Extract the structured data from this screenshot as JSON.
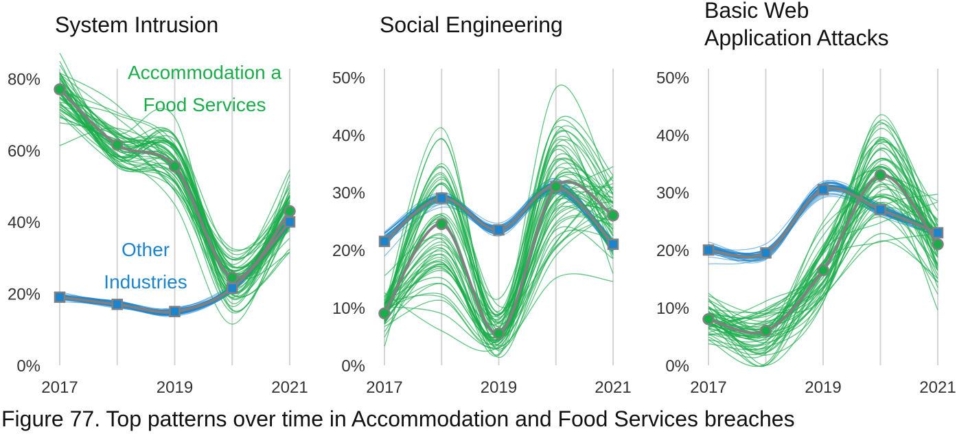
{
  "caption": "Figure 77. Top patterns over time in Accommodation and Food Services breaches",
  "colors": {
    "industry": "#1aad4a",
    "other": "#1c84cc",
    "median_line": "#808080",
    "grid": "#d4d4d4"
  },
  "chart_data": [
    {
      "type": "line",
      "title": "System Intrusion",
      "x": [
        2017,
        2018,
        2019,
        2020,
        2021
      ],
      "x_tick_labels": [
        "2017",
        "2019",
        "2021"
      ],
      "y_tick_labels": [
        "0%",
        "20%",
        "40%",
        "60%",
        "80%"
      ],
      "ylim": [
        0,
        82
      ],
      "series": [
        {
          "name": "Accommodation a Food Services",
          "color": "#1aad4a",
          "marker": "circle",
          "values": [
            77,
            61.5,
            55.5,
            24.5,
            43
          ],
          "band_spread": [
            9,
            8,
            10,
            9,
            10
          ]
        },
        {
          "name": "Other Industries",
          "color": "#1c84cc",
          "marker": "square",
          "values": [
            19,
            17,
            15,
            21.5,
            40
          ],
          "band_spread": [
            1.2,
            1,
            1,
            1.2,
            1.5
          ]
        }
      ]
    },
    {
      "type": "line",
      "title": "Social Engineering",
      "x": [
        2017,
        2018,
        2019,
        2020,
        2021
      ],
      "x_tick_labels": [
        "2017",
        "2019",
        "2021"
      ],
      "y_tick_labels": [
        "0%",
        "10%",
        "20%",
        "30%",
        "40%",
        "50%"
      ],
      "ylim": [
        0,
        51
      ],
      "series": [
        {
          "name": "",
          "color": "#1aad4a",
          "marker": "circle",
          "values": [
            9,
            24.5,
            5.5,
            31,
            26
          ],
          "band_spread": [
            4,
            14,
            5,
            14,
            9
          ]
        },
        {
          "name": "",
          "color": "#1c84cc",
          "marker": "square",
          "values": [
            21.5,
            29,
            23.5,
            31,
            21
          ],
          "band_spread": [
            1.5,
            1.2,
            1,
            1.2,
            1.2
          ]
        }
      ]
    },
    {
      "type": "line",
      "title": "Basic Web\nApplication Attacks",
      "x": [
        2017,
        2018,
        2019,
        2020,
        2021
      ],
      "x_tick_labels": [
        "2017",
        "2019",
        "2021"
      ],
      "y_tick_labels": [
        "0%",
        "10%",
        "20%",
        "30%",
        "40%",
        "50%"
      ],
      "ylim": [
        0,
        51
      ],
      "series": [
        {
          "name": "",
          "color": "#1aad4a",
          "marker": "circle",
          "values": [
            8,
            6,
            16.5,
            33,
            21
          ],
          "band_spread": [
            5,
            6,
            7,
            12,
            8
          ]
        },
        {
          "name": "",
          "color": "#1c84cc",
          "marker": "square",
          "values": [
            20,
            19.5,
            30.5,
            27,
            23
          ],
          "band_spread": [
            1.2,
            1,
            1.2,
            1,
            1
          ]
        }
      ]
    }
  ],
  "annotations": [
    {
      "panel": 0,
      "series": 0,
      "lines": [
        "Accommodation a",
        "Food Services"
      ],
      "color": "#1aad4a"
    },
    {
      "panel": 0,
      "series": 1,
      "lines": [
        "Other",
        "Industries"
      ],
      "color": "#1c84cc"
    }
  ]
}
